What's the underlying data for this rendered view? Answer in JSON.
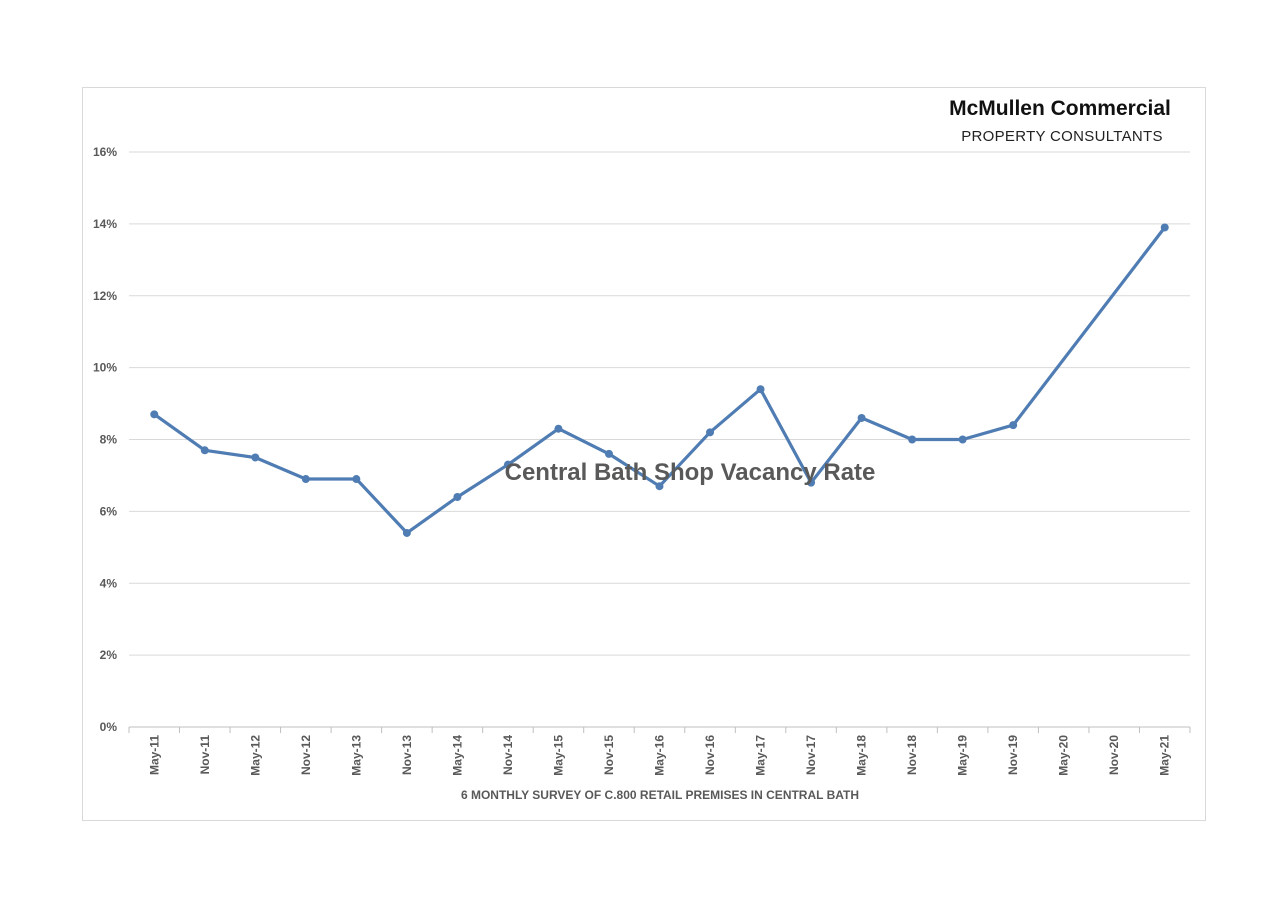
{
  "brand": {
    "name": "McMullen Commercial",
    "subtitle": "PROPERTY CONSULTANTS"
  },
  "chart_data": {
    "type": "line",
    "title": "Central Bath Shop Vacancy Rate",
    "xlabel": "6 MONTHLY SURVEY OF C.800 RETAIL PREMISES IN CENTRAL BATH",
    "ylabel": "",
    "ylim": [
      0,
      16
    ],
    "yticks": [
      "0%",
      "2%",
      "4%",
      "6%",
      "8%",
      "10%",
      "12%",
      "14%",
      "16%"
    ],
    "grid": true,
    "categories": [
      "May-11",
      "Nov-11",
      "May-12",
      "Nov-12",
      "May-13",
      "Nov-13",
      "May-14",
      "Nov-14",
      "May-15",
      "Nov-15",
      "May-16",
      "Nov-16",
      "May-17",
      "Nov-17",
      "May-18",
      "Nov-18",
      "May-19",
      "Nov-19",
      "May-20",
      "Nov-20",
      "May-21"
    ],
    "series": [
      {
        "color": "#4f7db3",
        "values": [
          8.7,
          7.7,
          7.5,
          6.9,
          6.9,
          5.4,
          6.4,
          7.3,
          8.3,
          7.6,
          6.7,
          8.2,
          9.4,
          6.8,
          8.6,
          8.0,
          8.0,
          8.4,
          null,
          null,
          13.9
        ],
        "show_marker": [
          true,
          true,
          true,
          true,
          true,
          true,
          true,
          true,
          true,
          true,
          true,
          true,
          true,
          true,
          true,
          true,
          true,
          true,
          false,
          false,
          true
        ]
      }
    ]
  }
}
